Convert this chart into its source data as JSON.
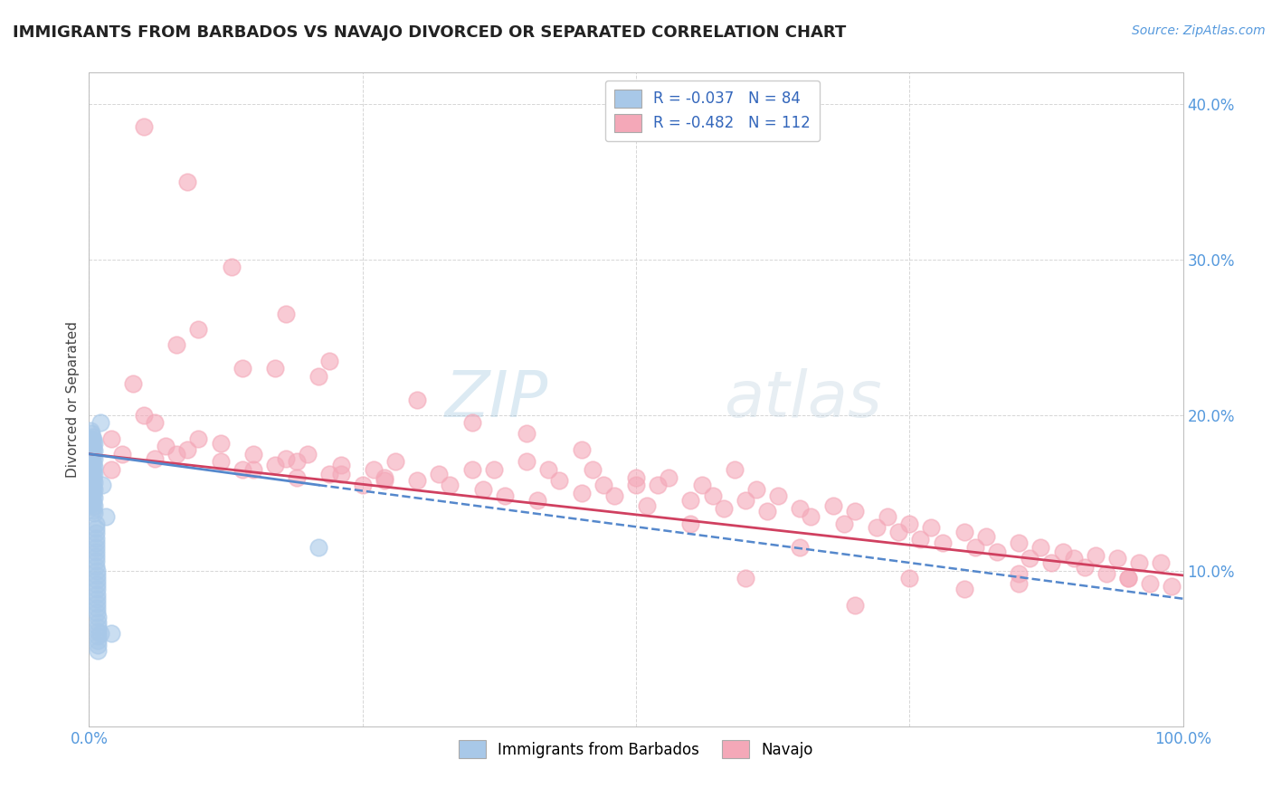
{
  "title": "IMMIGRANTS FROM BARBADOS VS NAVAJO DIVORCED OR SEPARATED CORRELATION CHART",
  "source": "Source: ZipAtlas.com",
  "ylabel": "Divorced or Separated",
  "legend_label_blue": "Immigrants from Barbados",
  "legend_label_pink": "Navajo",
  "legend_R_blue": "R = -0.037",
  "legend_N_blue": "N = 84",
  "legend_R_pink": "R = -0.482",
  "legend_N_pink": "N = 112",
  "blue_color": "#A8C8E8",
  "pink_color": "#F4A8B8",
  "trend_blue_color": "#5588CC",
  "trend_pink_color": "#D04060",
  "background_color": "#FFFFFF",
  "grid_color": "#CCCCCC",
  "xlim": [
    0.0,
    1.0
  ],
  "ylim": [
    0.0,
    0.42
  ],
  "blue_trend_start_x": 0.0,
  "blue_trend_start_y": 0.175,
  "blue_trend_end_x": 0.21,
  "blue_trend_end_y": 0.155,
  "blue_trend_dashed_start_x": 0.21,
  "blue_trend_dashed_start_y": 0.155,
  "blue_trend_dashed_end_x": 1.0,
  "blue_trend_dashed_end_y": 0.082,
  "pink_trend_start_x": 0.0,
  "pink_trend_start_y": 0.175,
  "pink_trend_end_x": 1.0,
  "pink_trend_end_y": 0.097,
  "blue_scatter_x": [
    0.001,
    0.001,
    0.001,
    0.001,
    0.001,
    0.001,
    0.001,
    0.001,
    0.001,
    0.001,
    0.002,
    0.002,
    0.002,
    0.002,
    0.002,
    0.002,
    0.002,
    0.002,
    0.002,
    0.002,
    0.003,
    0.003,
    0.003,
    0.003,
    0.003,
    0.003,
    0.003,
    0.003,
    0.003,
    0.003,
    0.004,
    0.004,
    0.004,
    0.004,
    0.004,
    0.004,
    0.004,
    0.004,
    0.004,
    0.004,
    0.005,
    0.005,
    0.005,
    0.005,
    0.005,
    0.005,
    0.005,
    0.005,
    0.005,
    0.005,
    0.006,
    0.006,
    0.006,
    0.006,
    0.006,
    0.006,
    0.006,
    0.006,
    0.006,
    0.006,
    0.007,
    0.007,
    0.007,
    0.007,
    0.007,
    0.007,
    0.007,
    0.007,
    0.007,
    0.007,
    0.008,
    0.008,
    0.008,
    0.008,
    0.008,
    0.008,
    0.008,
    0.008,
    0.01,
    0.01,
    0.012,
    0.015,
    0.02,
    0.21
  ],
  "blue_scatter_y": [
    0.19,
    0.185,
    0.18,
    0.175,
    0.17,
    0.165,
    0.16,
    0.155,
    0.15,
    0.145,
    0.188,
    0.183,
    0.178,
    0.173,
    0.168,
    0.163,
    0.158,
    0.153,
    0.148,
    0.143,
    0.186,
    0.181,
    0.176,
    0.171,
    0.166,
    0.161,
    0.156,
    0.151,
    0.146,
    0.141,
    0.184,
    0.179,
    0.174,
    0.169,
    0.164,
    0.159,
    0.154,
    0.149,
    0.144,
    0.139,
    0.182,
    0.177,
    0.172,
    0.167,
    0.162,
    0.157,
    0.152,
    0.147,
    0.142,
    0.137,
    0.13,
    0.127,
    0.124,
    0.121,
    0.118,
    0.115,
    0.112,
    0.109,
    0.106,
    0.103,
    0.1,
    0.097,
    0.094,
    0.091,
    0.088,
    0.085,
    0.082,
    0.079,
    0.076,
    0.073,
    0.07,
    0.067,
    0.064,
    0.061,
    0.058,
    0.055,
    0.052,
    0.049,
    0.195,
    0.06,
    0.155,
    0.135,
    0.06,
    0.115
  ],
  "pink_scatter_x": [
    0.02,
    0.03,
    0.04,
    0.05,
    0.06,
    0.07,
    0.08,
    0.1,
    0.12,
    0.14,
    0.15,
    0.17,
    0.18,
    0.19,
    0.2,
    0.22,
    0.23,
    0.25,
    0.26,
    0.27,
    0.28,
    0.3,
    0.32,
    0.33,
    0.35,
    0.36,
    0.37,
    0.38,
    0.4,
    0.41,
    0.42,
    0.43,
    0.45,
    0.46,
    0.47,
    0.48,
    0.5,
    0.51,
    0.52,
    0.53,
    0.55,
    0.56,
    0.57,
    0.58,
    0.59,
    0.6,
    0.61,
    0.62,
    0.63,
    0.65,
    0.66,
    0.68,
    0.69,
    0.7,
    0.72,
    0.73,
    0.74,
    0.75,
    0.76,
    0.77,
    0.78,
    0.8,
    0.81,
    0.82,
    0.83,
    0.85,
    0.86,
    0.87,
    0.88,
    0.89,
    0.9,
    0.91,
    0.92,
    0.93,
    0.94,
    0.95,
    0.96,
    0.97,
    0.98,
    0.99,
    0.08,
    0.1,
    0.14,
    0.18,
    0.22,
    0.3,
    0.35,
    0.4,
    0.45,
    0.5,
    0.05,
    0.09,
    0.13,
    0.17,
    0.21,
    0.6,
    0.7,
    0.75,
    0.8,
    0.85,
    0.02,
    0.06,
    0.09,
    0.12,
    0.15,
    0.19,
    0.23,
    0.27,
    0.55,
    0.65,
    0.85,
    0.95
  ],
  "pink_scatter_y": [
    0.185,
    0.175,
    0.22,
    0.2,
    0.195,
    0.18,
    0.175,
    0.185,
    0.17,
    0.165,
    0.175,
    0.168,
    0.172,
    0.16,
    0.175,
    0.162,
    0.168,
    0.155,
    0.165,
    0.16,
    0.17,
    0.158,
    0.162,
    0.155,
    0.165,
    0.152,
    0.165,
    0.148,
    0.17,
    0.145,
    0.165,
    0.158,
    0.15,
    0.165,
    0.155,
    0.148,
    0.16,
    0.142,
    0.155,
    0.16,
    0.145,
    0.155,
    0.148,
    0.14,
    0.165,
    0.145,
    0.152,
    0.138,
    0.148,
    0.14,
    0.135,
    0.142,
    0.13,
    0.138,
    0.128,
    0.135,
    0.125,
    0.13,
    0.12,
    0.128,
    0.118,
    0.125,
    0.115,
    0.122,
    0.112,
    0.118,
    0.108,
    0.115,
    0.105,
    0.112,
    0.108,
    0.102,
    0.11,
    0.098,
    0.108,
    0.095,
    0.105,
    0.092,
    0.105,
    0.09,
    0.245,
    0.255,
    0.23,
    0.265,
    0.235,
    0.21,
    0.195,
    0.188,
    0.178,
    0.155,
    0.385,
    0.35,
    0.295,
    0.23,
    0.225,
    0.095,
    0.078,
    0.095,
    0.088,
    0.092,
    0.165,
    0.172,
    0.178,
    0.182,
    0.165,
    0.17,
    0.162,
    0.158,
    0.13,
    0.115,
    0.098,
    0.095
  ]
}
